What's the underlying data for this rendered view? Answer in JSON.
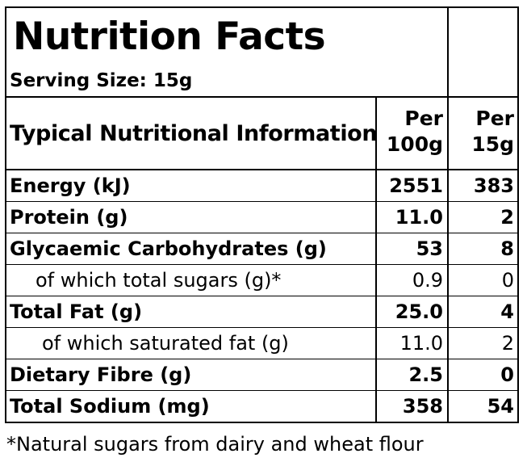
{
  "label": {
    "title": "Nutrition Facts",
    "serving_size": "Serving Size: 15g",
    "header": {
      "description": "Typical Nutritional Information",
      "col1_line1": "Per",
      "col1_line2": "100g",
      "col2_line1": "Per",
      "col2_line2": "15g"
    },
    "rows": [
      {
        "name": "Energy (kJ)",
        "per100": "2551",
        "perServing": "383",
        "bold": true
      },
      {
        "name": "Protein (g)",
        "per100": "11.0",
        "perServing": "2",
        "bold": true
      },
      {
        "name": "Glycaemic Carbohydrates (g)",
        "per100": "53",
        "perServing": "8",
        "bold": true
      },
      {
        "name": "of which total sugars (g)*",
        "per100": "0.9",
        "perServing": "0",
        "bold": false
      },
      {
        "name": "Total Fat (g)",
        "per100": "25.0",
        "perServing": "4",
        "bold": true
      },
      {
        "name": "of which saturated fat (g)",
        "per100": "11.0",
        "perServing": "2",
        "bold": false
      },
      {
        "name": "Dietary Fibre (g)",
        "per100": "2.5",
        "perServing": "0",
        "bold": true
      },
      {
        "name": "Total Sodium (mg)",
        "per100": "358",
        "perServing": "54",
        "bold": true
      }
    ],
    "footnote": "*Natural sugars from dairy and wheat flour"
  }
}
